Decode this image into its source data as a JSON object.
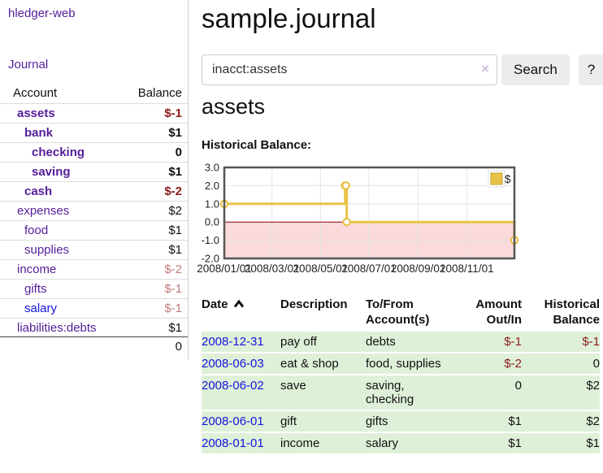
{
  "colors": {
    "link_purple": "#541d99",
    "link_blue": "#1414dd",
    "negative_strong": "#8b1a1a",
    "negative_soft": "#c07a7a",
    "row_green": "#dff0d8",
    "chart_line_gold": "#e9c349",
    "chart_negative_fill": "#fadada",
    "chart_zero_line": "#8b0000"
  },
  "sidebar": {
    "brand": "hledger-web",
    "nav_journal": "Journal",
    "accounts": {
      "header_account": "Account",
      "header_balance": "Balance",
      "rows": [
        {
          "name": "assets",
          "balance": "$-1"
        },
        {
          "name": "bank",
          "balance": "$1"
        },
        {
          "name": "checking",
          "balance": "0"
        },
        {
          "name": "saving",
          "balance": "$1"
        },
        {
          "name": "cash",
          "balance": "$-2"
        },
        {
          "name": "expenses",
          "balance": "$2"
        },
        {
          "name": "food",
          "balance": "$1"
        },
        {
          "name": "supplies",
          "balance": "$1"
        },
        {
          "name": "income",
          "balance": "$-2"
        },
        {
          "name": "gifts",
          "balance": "$-1"
        },
        {
          "name": "salary",
          "balance": "$-1"
        },
        {
          "name": "liabilities:debts",
          "balance": "$1"
        }
      ],
      "total": "0"
    }
  },
  "main": {
    "title": "sample.journal",
    "search": {
      "value": "inacct:assets",
      "clear_icon": "×",
      "search_button": "Search",
      "help_button": "?"
    },
    "account_heading": "assets",
    "chart_title": "Historical Balance:",
    "register": {
      "headers": {
        "date": "Date",
        "description": "Description",
        "tofrom": "To/From Account(s)",
        "amount": "Amount Out/In",
        "balance": "Historical Balance"
      },
      "sort": "ascending",
      "rows": [
        {
          "date": "2008-12-31",
          "description": "pay off",
          "accounts": "debts",
          "amount": "$-1",
          "balance": "$-1"
        },
        {
          "date": "2008-06-03",
          "description": "eat & shop",
          "accounts": "food, supplies",
          "amount": "$-2",
          "balance": "0"
        },
        {
          "date": "2008-06-02",
          "description": "save",
          "accounts": "saving, checking",
          "amount": "0",
          "balance": "$2"
        },
        {
          "date": "2008-06-01",
          "description": "gift",
          "accounts": "gifts",
          "amount": "$1",
          "balance": "$2"
        },
        {
          "date": "2008-01-01",
          "description": "income",
          "accounts": "salary",
          "amount": "$1",
          "balance": "$1"
        }
      ]
    }
  },
  "chart_data": {
    "type": "line",
    "step": true,
    "title": "Historical Balance:",
    "ylim": [
      -2,
      3
    ],
    "x_max_day": 365,
    "y_ticks": [
      {
        "label": "3.0",
        "value": 3
      },
      {
        "label": "2.0",
        "value": 2
      },
      {
        "label": "1.0",
        "value": 1
      },
      {
        "label": "0.0",
        "value": 0
      },
      {
        "label": "-1.0",
        "value": -1
      },
      {
        "label": "-2.0",
        "value": -2
      }
    ],
    "x_ticks": [
      {
        "label": "2008/01/01",
        "day": 0
      },
      {
        "label": "2008/03/01",
        "day": 60
      },
      {
        "label": "2008/05/01",
        "day": 121
      },
      {
        "label": "2008/07/01",
        "day": 182
      },
      {
        "label": "2008/09/01",
        "day": 244
      },
      {
        "label": "2008/11/01",
        "day": 305
      }
    ],
    "series": [
      {
        "name": "$",
        "color": "#e9c349",
        "points": [
          {
            "date": "2008-01-01",
            "day": 0,
            "value": 1
          },
          {
            "date": "2008-06-01",
            "day": 152,
            "value": 2
          },
          {
            "date": "2008-06-02",
            "day": 153,
            "value": 2
          },
          {
            "date": "2008-06-03",
            "day": 154,
            "value": 0
          },
          {
            "date": "2008-12-31",
            "day": 365,
            "value": -1
          }
        ]
      }
    ],
    "colors": {
      "line": "#e9c349",
      "negative_fill": "#fadada",
      "zero_line": "#8b0000",
      "grid": "#e4e4e4",
      "border": "#555555"
    },
    "legend_position": "top-right",
    "grid": true
  }
}
